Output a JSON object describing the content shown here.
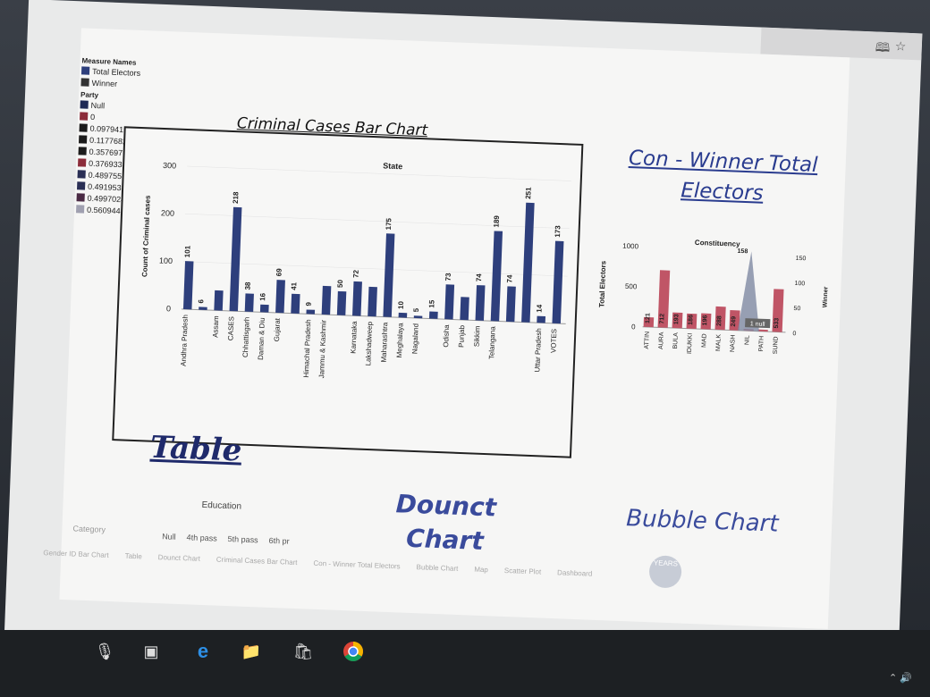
{
  "browser": {
    "icons": [
      "book-icon",
      "star-icon"
    ]
  },
  "legend": {
    "measure_names_title": "Measure Names",
    "measures": [
      {
        "label": "Total Electors",
        "color": "#2e3f7c"
      },
      {
        "label": "Winner",
        "color": "#333333"
      }
    ],
    "party_title": "Party",
    "parties": [
      {
        "label": "Null",
        "color": "#1f2a55"
      },
      {
        "label": "0",
        "color": "#8c2c3a"
      },
      {
        "label": "0.09794108",
        "color": "#1c1c1c"
      },
      {
        "label": "0.11776824",
        "color": "#1c1c1c"
      },
      {
        "label": "0.35769706",
        "color": "#1c1c1c"
      },
      {
        "label": "0.37693380",
        "color": "#8c2c3a"
      },
      {
        "label": "0.48975517",
        "color": "#2a2f55"
      },
      {
        "label": "0.49195335",
        "color": "#2a2f55"
      },
      {
        "label": "0.49970247",
        "color": "#4a2a44"
      },
      {
        "label": "0.56094432",
        "color": "#a0a0b0"
      }
    ]
  },
  "criminal_chart": {
    "title": "Criminal Cases Bar Chart",
    "chart_data": {
      "type": "bar",
      "title": "Criminal Cases Bar Chart",
      "xlabel": "State",
      "ylabel": "Count of Criminal cases",
      "ylim": [
        0,
        300
      ],
      "yticks": [
        0,
        100,
        200,
        300
      ],
      "categories": [
        "Andhra Pradesh",
        "Assam",
        "CASES",
        "Chhattisgarh",
        "Daman & Diu",
        "Gujarat",
        "Himachal Pradesh",
        "Jammu & Kashmir",
        "Karnataka",
        "Lakshadweep",
        "Maharashtra",
        "Meghalaya",
        "Nagaland",
        "Odisha",
        "Punjab",
        "Sikkim",
        "Telangana",
        "Uttar Pradesh",
        "VOTES"
      ],
      "values": [
        101,
        42,
        218,
        38,
        16,
        69,
        9,
        60,
        72,
        62,
        175,
        10,
        5,
        73,
        48,
        74,
        189,
        14,
        173
      ],
      "labeled": [
        true,
        false,
        true,
        true,
        true,
        true,
        true,
        false,
        true,
        false,
        true,
        true,
        true,
        true,
        false,
        true,
        true,
        true,
        true
      ],
      "extra_bars": [
        {
          "after": "Andhra Pradesh",
          "value": 6
        },
        {
          "after": "Gujarat",
          "value": 41
        },
        {
          "after": "Jammu & Kashmir",
          "value": 50
        },
        {
          "after": "Nagaland",
          "value": 15
        },
        {
          "after": "Telangana",
          "value": 74
        },
        {
          "after": "Telangana",
          "value": 251
        }
      ],
      "color": "#2e3f7c"
    }
  },
  "winner_chart": {
    "title": "Con - Winner Total Electors",
    "chart_data": {
      "type": "bar",
      "title": "Con - Winner Total Electors",
      "xlabel": "Constituency",
      "ylabel": "Total Electors",
      "y2label": "Winner",
      "ylim": [
        0,
        1000
      ],
      "yticks": [
        0,
        500,
        1000
      ],
      "y2ticks": [
        0,
        50,
        100,
        150
      ],
      "categories": [
        "ATTIN",
        "AURA",
        "BULA",
        "IDUKKI",
        "MAD",
        "MALK",
        "NASH",
        "NIL",
        "PATH",
        "SUND"
      ],
      "values": [
        121,
        712,
        193,
        186,
        196,
        288,
        249,
        0,
        19,
        533
      ],
      "line_peak": {
        "category": "NIL",
        "value": 158
      },
      "null_label": "1 null"
    }
  },
  "table": {
    "title": "Table",
    "education_label": "Education",
    "category_label": "Category",
    "education_values": [
      "Null",
      "4th pass",
      "5th pass",
      "6th pr"
    ]
  },
  "donut": {
    "title_line1": "Dounct",
    "title_line2": "Chart"
  },
  "bubble": {
    "title": "Bubble Chart",
    "bubble_label": "YEARS"
  },
  "sheet_tabs": [
    "Gender ID Bar Chart",
    "Table",
    "Dounct Chart",
    "Criminal Cases Bar Chart",
    "Con - Winner Total Electors",
    "Bubble Chart",
    "Map",
    "Scatter Plot",
    "Dashboard"
  ],
  "taskbar": {
    "icons": [
      "mic-icon",
      "task-view-icon",
      "edge-icon",
      "file-explorer-icon",
      "store-icon",
      "chrome-icon"
    ]
  }
}
